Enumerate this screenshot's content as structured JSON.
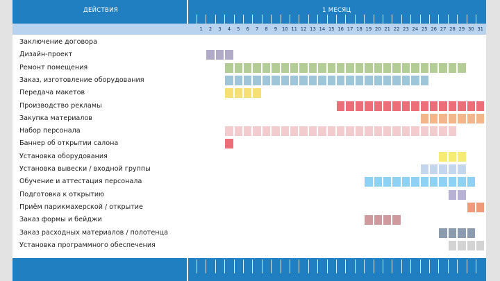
{
  "header": {
    "left_title": "ДЕЙСТВИЯ",
    "right_title": "1 МЕСЯЦ"
  },
  "chart_data": {
    "type": "gantt",
    "title": "1 МЕСЯЦ",
    "xlabel": "",
    "ylabel": "ДЕЙСТВИЯ",
    "days": [
      1,
      2,
      3,
      4,
      5,
      6,
      7,
      8,
      9,
      10,
      11,
      12,
      13,
      14,
      15,
      16,
      17,
      18,
      19,
      20,
      21,
      22,
      23,
      24,
      25,
      26,
      27,
      28,
      29,
      30,
      31
    ],
    "tasks": [
      {
        "label": "Заключение договора",
        "start": null,
        "end": null,
        "color": "#ffffff"
      },
      {
        "label": "Дизайн-проект",
        "start": 2,
        "end": 4,
        "color": "#b2abc8"
      },
      {
        "label": "Ремонт помещения",
        "start": 4,
        "end": 29,
        "color": "#b4cc96"
      },
      {
        "label": "Заказ, изготовление оборудования",
        "start": 4,
        "end": 25,
        "color": "#9ec6d8"
      },
      {
        "label": "Передача макетов",
        "start": 4,
        "end": 7,
        "color": "#f6df74"
      },
      {
        "label": "Производство рекламы",
        "start": 16,
        "end": 31,
        "color": "#ec6e78"
      },
      {
        "label": "Закупка материалов",
        "start": 25,
        "end": 31,
        "color": "#f3b58a"
      },
      {
        "label": "Набор персонала",
        "start": 4,
        "end": 28,
        "color": "#f3cccf"
      },
      {
        "label": "Баннер об открытии салона",
        "start": 4,
        "end": 4,
        "color": "#ec6e78"
      },
      {
        "label": "Установка оборудования",
        "start": 27,
        "end": 29,
        "color": "#f6ec74"
      },
      {
        "label": "Установка вывески / входной группы",
        "start": 25,
        "end": 29,
        "color": "#c3d6ee"
      },
      {
        "label": "Обучение и аттестация персонала",
        "start": 19,
        "end": 30,
        "color": "#8fd1f2"
      },
      {
        "label": "Подготовка к открытию",
        "start": 28,
        "end": 29,
        "color": "#b7b1d6"
      },
      {
        "label": "Приём парикмахерской / открытие",
        "start": 30,
        "end": 31,
        "color": "#ef9b7a"
      },
      {
        "label": "Заказ формы и бейджи",
        "start": 19,
        "end": 22,
        "color": "#cf9a9e"
      },
      {
        "label": "Заказ расходных материалов / полотенца",
        "start": 27,
        "end": 30,
        "color": "#8c9cb0"
      },
      {
        "label": "Установка программного обеспечения",
        "start": 28,
        "end": 31,
        "color": "#d3d3d3"
      }
    ]
  }
}
